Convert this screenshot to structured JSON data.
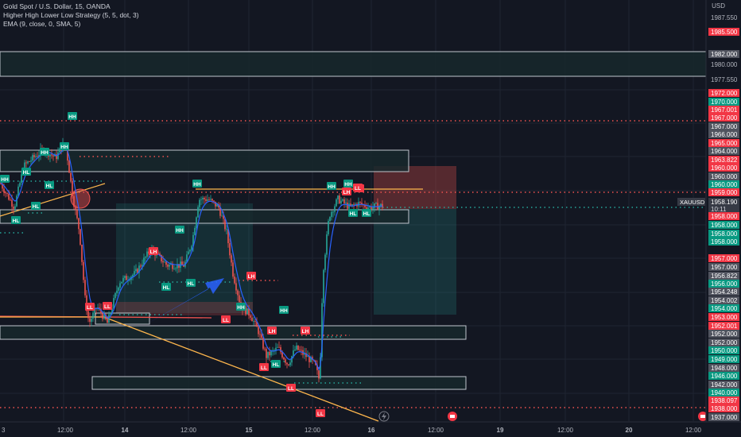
{
  "legend": {
    "symbol": "Gold Spot / U.S. Dollar, 15, OANDA",
    "indicator1": "Higher High Lower Low Strategy (5, 5, dot, 3)",
    "indicator2": "EMA (9, close, 0, SMA, 5)"
  },
  "currency": "USD",
  "colors": {
    "background": "#131722",
    "up": "#26a69a",
    "down": "#ef5350",
    "ema": "#2962ff",
    "trend": "#ffb74d",
    "zone_fill": "#17282b",
    "zone_border": "#c0c6ce"
  },
  "price_axis": {
    "plain_labels": [
      "1987.550",
      "1980.000",
      "1977.550"
    ],
    "badges": [
      {
        "text": "1985.500",
        "color": "red"
      },
      {
        "text": "1982.000",
        "color": "gray"
      },
      {
        "text": "1972.000",
        "color": "red"
      },
      {
        "text": "1970.000",
        "color": "green"
      },
      {
        "text": "1967.001",
        "color": "red"
      },
      {
        "text": "1967.000",
        "color": "red"
      },
      {
        "text": "1967.000",
        "color": "gray"
      },
      {
        "text": "1966.000",
        "color": "gray"
      },
      {
        "text": "1965.000",
        "color": "red"
      },
      {
        "text": "1964.000",
        "color": "gray"
      },
      {
        "text": "1963.822",
        "color": "red"
      },
      {
        "text": "1960.000",
        "color": "red"
      },
      {
        "text": "1960.000",
        "color": "gray"
      },
      {
        "text": "1960.000",
        "color": "green"
      },
      {
        "text": "1959.000",
        "color": "red"
      },
      {
        "text": "1958.000",
        "color": "red"
      },
      {
        "text": "1958.000",
        "color": "green"
      },
      {
        "text": "1958.000",
        "color": "green"
      },
      {
        "text": "1958.000",
        "color": "green"
      },
      {
        "text": "1957.000",
        "color": "red"
      },
      {
        "text": "1957.000",
        "color": "gray"
      },
      {
        "text": "1956.822",
        "color": "gray"
      },
      {
        "text": "1956.000",
        "color": "green"
      },
      {
        "text": "1954.248",
        "color": "gray"
      },
      {
        "text": "1954.002",
        "color": "gray"
      },
      {
        "text": "1954.000",
        "color": "green"
      },
      {
        "text": "1953.000",
        "color": "red"
      },
      {
        "text": "1952.001",
        "color": "red"
      },
      {
        "text": "1952.000",
        "color": "gray"
      },
      {
        "text": "1952.000",
        "color": "gray"
      },
      {
        "text": "1950.000",
        "color": "green"
      },
      {
        "text": "1949.000",
        "color": "green"
      },
      {
        "text": "1948.000",
        "color": "gray"
      },
      {
        "text": "1946.000",
        "color": "green"
      },
      {
        "text": "1942.000",
        "color": "gray"
      },
      {
        "text": "1940.000",
        "color": "green"
      },
      {
        "text": "1938.097",
        "color": "red"
      },
      {
        "text": "1938.000",
        "color": "red"
      },
      {
        "text": "1937.000",
        "color": "gray"
      }
    ],
    "current_price": "1958.190",
    "countdown": "10:11",
    "ticker_label": "XAUUSD"
  },
  "time_axis": [
    "3",
    "12:00",
    "14",
    "12:00",
    "15",
    "12:00",
    "16",
    "12:00",
    "19",
    "12:00",
    "20",
    "12:00"
  ],
  "pivot_labels": [
    "HH",
    "HH",
    "HH",
    "HH",
    "HL",
    "HL",
    "HL",
    "HL",
    "HH",
    "LL",
    "LL",
    "LH",
    "HL",
    "HH",
    "HL",
    "HH",
    "LL",
    "LH",
    "HL",
    "HH",
    "LH",
    "LL",
    "LH",
    "LL",
    "LL",
    "LH",
    "HH",
    "HH",
    "HL",
    "HL",
    "LH",
    "LL"
  ],
  "icons": [
    "lightning-icon",
    "event-flag-icon",
    "event-flag-icon",
    "event-flag-icon"
  ]
}
